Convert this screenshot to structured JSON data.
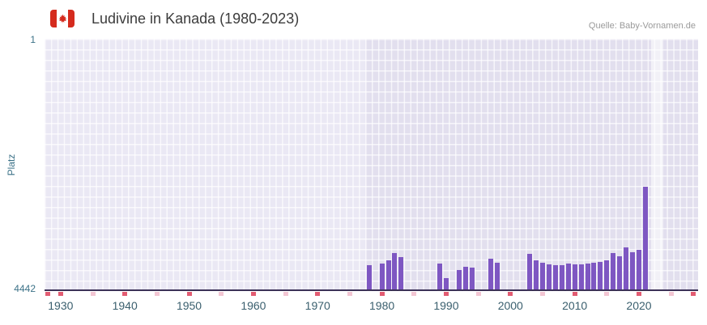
{
  "header": {
    "title": "Ludivine in Kanada (1980-2023)",
    "source": "Quelle: Baby-Vornamen.de",
    "flag_icon": "canada-flag"
  },
  "y_axis": {
    "label": "Platz",
    "top_tick": "1",
    "bottom_tick": "4442"
  },
  "chart_data": {
    "type": "bar",
    "title": "Ludivine in Kanada (1980-2023)",
    "xlabel": "",
    "ylabel": "Platz",
    "y_min": 1,
    "y_max": 4442,
    "y_inverted": true,
    "grid": true,
    "x_range": [
      1927.5,
      2029.2
    ],
    "x_tick_years": [
      1930,
      1940,
      1950,
      1960,
      1970,
      1980,
      1990,
      2000,
      2010,
      2020
    ],
    "minor_tick_years": [
      1935,
      1945,
      1955,
      1965,
      1975,
      1985,
      1995,
      2005,
      2015,
      2025
    ],
    "edge_tick_years": [
      1928,
      2028.5
    ],
    "shaded_region": {
      "from": 1977.5,
      "to": 2029.2
    },
    "highlight_band": {
      "from": 2021.9,
      "to": 2023.8
    },
    "series": [
      {
        "name": "Ludivine",
        "points": [
          {
            "year": 1978,
            "rank": 4015
          },
          {
            "year": 1980,
            "rank": 3990
          },
          {
            "year": 1981,
            "rank": 3930
          },
          {
            "year": 1982,
            "rank": 3800
          },
          {
            "year": 1983,
            "rank": 3870
          },
          {
            "year": 1989,
            "rank": 3985
          },
          {
            "year": 1990,
            "rank": 4245
          },
          {
            "year": 1992,
            "rank": 4100
          },
          {
            "year": 1993,
            "rank": 4045
          },
          {
            "year": 1994,
            "rank": 4060
          },
          {
            "year": 1997,
            "rank": 3900
          },
          {
            "year": 1998,
            "rank": 3970
          },
          {
            "year": 2003,
            "rank": 3815
          },
          {
            "year": 2004,
            "rank": 3930
          },
          {
            "year": 2005,
            "rank": 3965
          },
          {
            "year": 2006,
            "rank": 4000
          },
          {
            "year": 2007,
            "rank": 4010
          },
          {
            "year": 2008,
            "rank": 4015
          },
          {
            "year": 2009,
            "rank": 3990
          },
          {
            "year": 2010,
            "rank": 4005
          },
          {
            "year": 2011,
            "rank": 4000
          },
          {
            "year": 2012,
            "rank": 3980
          },
          {
            "year": 2013,
            "rank": 3975
          },
          {
            "year": 2014,
            "rank": 3960
          },
          {
            "year": 2015,
            "rank": 3930
          },
          {
            "year": 2016,
            "rank": 3800
          },
          {
            "year": 2017,
            "rank": 3860
          },
          {
            "year": 2018,
            "rank": 3700
          },
          {
            "year": 2019,
            "rank": 3790
          },
          {
            "year": 2020,
            "rank": 3745
          },
          {
            "year": 2021,
            "rank": 2620
          }
        ]
      }
    ],
    "colors": {
      "bar": "#7e57c2",
      "plot_bg": "#eae8f4",
      "plot_bg_shaded": "#e2dfee",
      "highlight": "rgba(255,255,255,0.55)",
      "decade_tick": "#e25c72",
      "minor_tick": "#f3c6d3",
      "axis_line": "#3c3257",
      "axis_text": "#3b7187",
      "x_tick_text": "#3a5f6e",
      "flag_red": "#d52b1e"
    }
  }
}
